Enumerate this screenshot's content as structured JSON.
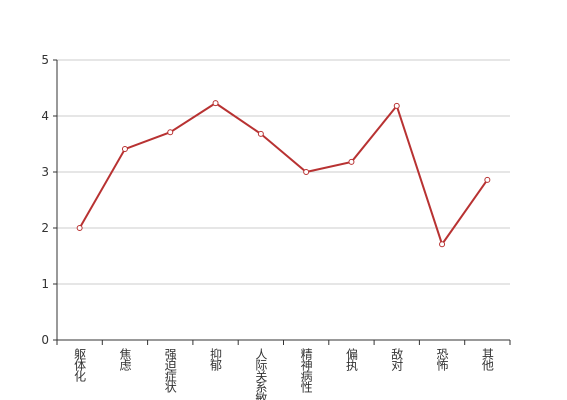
{
  "chart_data": {
    "type": "line",
    "categories": [
      "躯体化",
      "焦虑",
      "强迫症状",
      "抑郁",
      "人际关系敏感",
      "精神病性",
      "偏执",
      "敌对",
      "恐怖",
      "其他"
    ],
    "values": [
      2.0,
      3.41,
      3.71,
      4.23,
      3.68,
      3.0,
      3.18,
      4.18,
      1.71,
      2.86
    ],
    "color": "#b83232",
    "ylim": [
      0,
      5
    ],
    "yticks": [
      0,
      1,
      2,
      3,
      4,
      5
    ],
    "grid": true
  }
}
